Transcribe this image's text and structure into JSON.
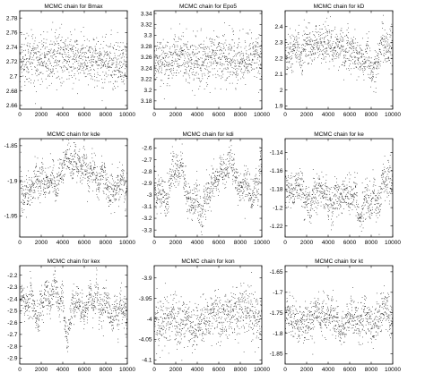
{
  "chart_data": [
    {
      "type": "scatter",
      "title": "MCMC chain for Bmax",
      "xlim": [
        0,
        10000
      ],
      "ylim": [
        2.655,
        2.79
      ],
      "x_ticks": [
        "0",
        "2000",
        "4000",
        "6000",
        "8000",
        "10000"
      ],
      "y_ticks": [
        "2.66",
        "2.68",
        "2.7",
        "2.72",
        "2.74",
        "2.76",
        "2.78"
      ],
      "y_tick_values": [
        2.66,
        2.68,
        2.7,
        2.72,
        2.74,
        2.76,
        2.78
      ],
      "mean": 2.722,
      "spread": 0.018,
      "wander": 0.004,
      "grid": false
    },
    {
      "type": "scatter",
      "title": "MCMC chain for Epo5",
      "xlim": [
        0,
        10000
      ],
      "ylim": [
        3.165,
        3.345
      ],
      "x_ticks": [
        "0",
        "2000",
        "4000",
        "6000",
        "8000",
        "10000"
      ],
      "y_ticks": [
        "3.18",
        "3.2",
        "3.22",
        "3.24",
        "3.26",
        "3.28",
        "3.3",
        "3.32",
        "3.34"
      ],
      "y_tick_values": [
        3.18,
        3.2,
        3.22,
        3.24,
        3.26,
        3.28,
        3.3,
        3.32,
        3.34
      ],
      "mean": 3.255,
      "spread": 0.022,
      "wander": 0.006,
      "grid": false
    },
    {
      "type": "scatter",
      "title": "MCMC chain for kD",
      "xlim": [
        0,
        10000
      ],
      "ylim": [
        1.88,
        2.5
      ],
      "x_ticks": [
        "0",
        "2000",
        "4000",
        "6000",
        "8000",
        "10000"
      ],
      "y_ticks": [
        "1.9",
        "2",
        "2.1",
        "2.2",
        "2.3",
        "2.4"
      ],
      "y_tick_values": [
        1.9,
        2.0,
        2.1,
        2.2,
        2.3,
        2.4
      ],
      "mean": 2.25,
      "spread": 0.06,
      "wander": 0.06,
      "grid": false
    },
    {
      "type": "scatter",
      "title": "MCMC chain for kde",
      "xlim": [
        0,
        10000
      ],
      "ylim": [
        -1.98,
        -1.84
      ],
      "x_ticks": [
        "0",
        "2000",
        "4000",
        "6000",
        "8000",
        "10000"
      ],
      "y_ticks": [
        "-1.85",
        "-1.9",
        "-1.95"
      ],
      "y_tick_values": [
        -1.85,
        -1.9,
        -1.95
      ],
      "mean": -1.905,
      "spread": 0.012,
      "wander": 0.018,
      "grid": false
    },
    {
      "type": "scatter",
      "title": "MCMC chain for kdi",
      "xlim": [
        0,
        10000
      ],
      "ylim": [
        -3.36,
        -2.52
      ],
      "x_ticks": [
        "0",
        "2000",
        "4000",
        "6000",
        "8000",
        "10000"
      ],
      "y_ticks": [
        "-2.6",
        "-2.7",
        "-2.8",
        "-2.9",
        "-3",
        "-3.1",
        "-3.2",
        "-3.3"
      ],
      "y_tick_values": [
        -2.6,
        -2.7,
        -2.8,
        -2.9,
        -3.0,
        -3.1,
        -3.2,
        -3.3
      ],
      "mean": -2.88,
      "spread": 0.07,
      "wander": 0.11,
      "grid": false
    },
    {
      "type": "scatter",
      "title": "MCMC chain for ke",
      "xlim": [
        0,
        10000
      ],
      "ylim": [
        -1.232,
        -1.125
      ],
      "x_ticks": [
        "0",
        "2000",
        "4000",
        "6000",
        "8000",
        "10000"
      ],
      "y_ticks": [
        "-1.14",
        "-1.16",
        "-1.18",
        "-1.2",
        "-1.22"
      ],
      "y_tick_values": [
        -1.14,
        -1.16,
        -1.18,
        -1.2,
        -1.22
      ],
      "mean": -1.178,
      "spread": 0.01,
      "wander": 0.011,
      "grid": false
    },
    {
      "type": "scatter",
      "title": "MCMC chain for kex",
      "xlim": [
        0,
        10000
      ],
      "ylim": [
        -2.95,
        -2.12
      ],
      "x_ticks": [
        "0",
        "2000",
        "4000",
        "6000",
        "8000",
        "10000"
      ],
      "y_ticks": [
        "-2.2",
        "-2.3",
        "-2.4",
        "-2.5",
        "-2.6",
        "-2.7",
        "-2.8",
        "-2.9"
      ],
      "y_tick_values": [
        -2.2,
        -2.3,
        -2.4,
        -2.5,
        -2.6,
        -2.7,
        -2.8,
        -2.9
      ],
      "mean": -2.45,
      "spread": 0.06,
      "wander": 0.13,
      "grid": false
    },
    {
      "type": "scatter",
      "title": "MCMC chain for kon",
      "xlim": [
        0,
        10000
      ],
      "ylim": [
        -4.11,
        -3.87
      ],
      "x_ticks": [
        "0",
        "2000",
        "4000",
        "6000",
        "8000",
        "10000"
      ],
      "y_ticks": [
        "-3.9",
        "-3.95",
        "-4",
        "-4.05",
        "-4.1"
      ],
      "y_tick_values": [
        -3.9,
        -3.95,
        -4.0,
        -4.05,
        -4.1
      ],
      "mean": -4.0,
      "spread": 0.03,
      "wander": 0.012,
      "grid": false
    },
    {
      "type": "scatter",
      "title": "MCMC chain for kt",
      "xlim": [
        0,
        10000
      ],
      "ylim": [
        -1.875,
        -1.635
      ],
      "x_ticks": [
        "0",
        "2000",
        "4000",
        "6000",
        "8000",
        "10000"
      ],
      "y_ticks": [
        "-1.65",
        "-1.7",
        "-1.75",
        "-1.8",
        "-1.85"
      ],
      "y_tick_values": [
        -1.65,
        -1.7,
        -1.75,
        -1.8,
        -1.85
      ],
      "mean": -1.76,
      "spread": 0.022,
      "wander": 0.022,
      "grid": false
    }
  ],
  "colors": {
    "marker": "#000000",
    "axes": "#000000",
    "background": "#ffffff"
  }
}
